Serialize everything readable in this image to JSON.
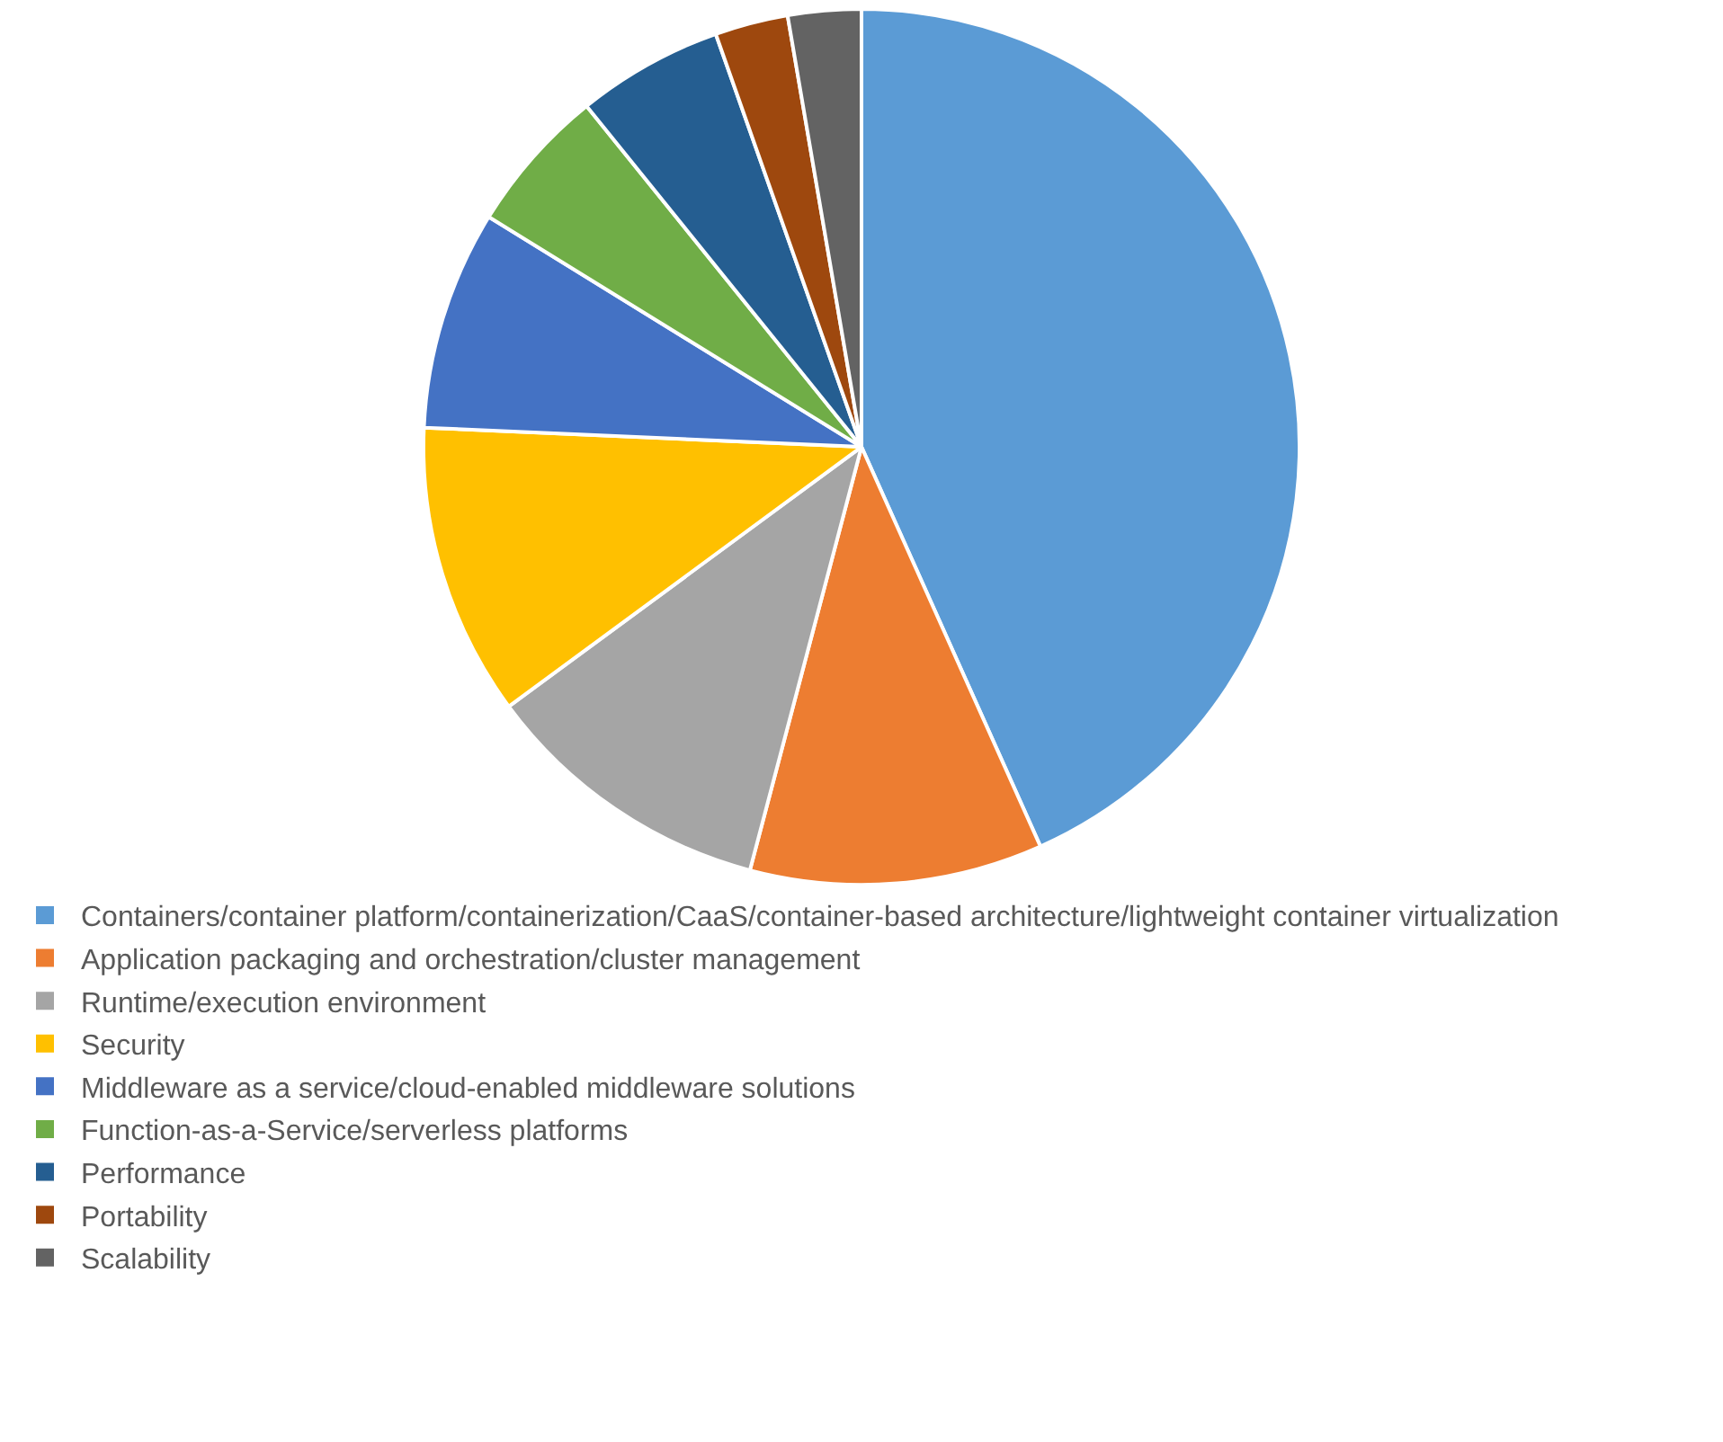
{
  "chart_data": {
    "type": "pie",
    "categories": [
      "Containers/container platform/containerization/CaaS/container-based architecture/lightweight container virtualization",
      "Application packaging and orchestration/cluster management",
      "Runtime/execution environment",
      "Security",
      "Middleware as a service/cloud-enabled middleware solutions",
      "Function-as-a-Service/serverless platforms",
      "Performance",
      "Portability",
      "Scalability"
    ],
    "values": [
      43.3,
      10.8,
      10.8,
      10.8,
      8.1,
      5.4,
      5.4,
      2.7,
      2.7
    ],
    "colors": [
      "#5b9bd5",
      "#ed7d31",
      "#a5a5a5",
      "#ffc000",
      "#4472c4",
      "#70ad47",
      "#255e91",
      "#9e480e",
      "#636363"
    ],
    "legend": "bottom"
  }
}
